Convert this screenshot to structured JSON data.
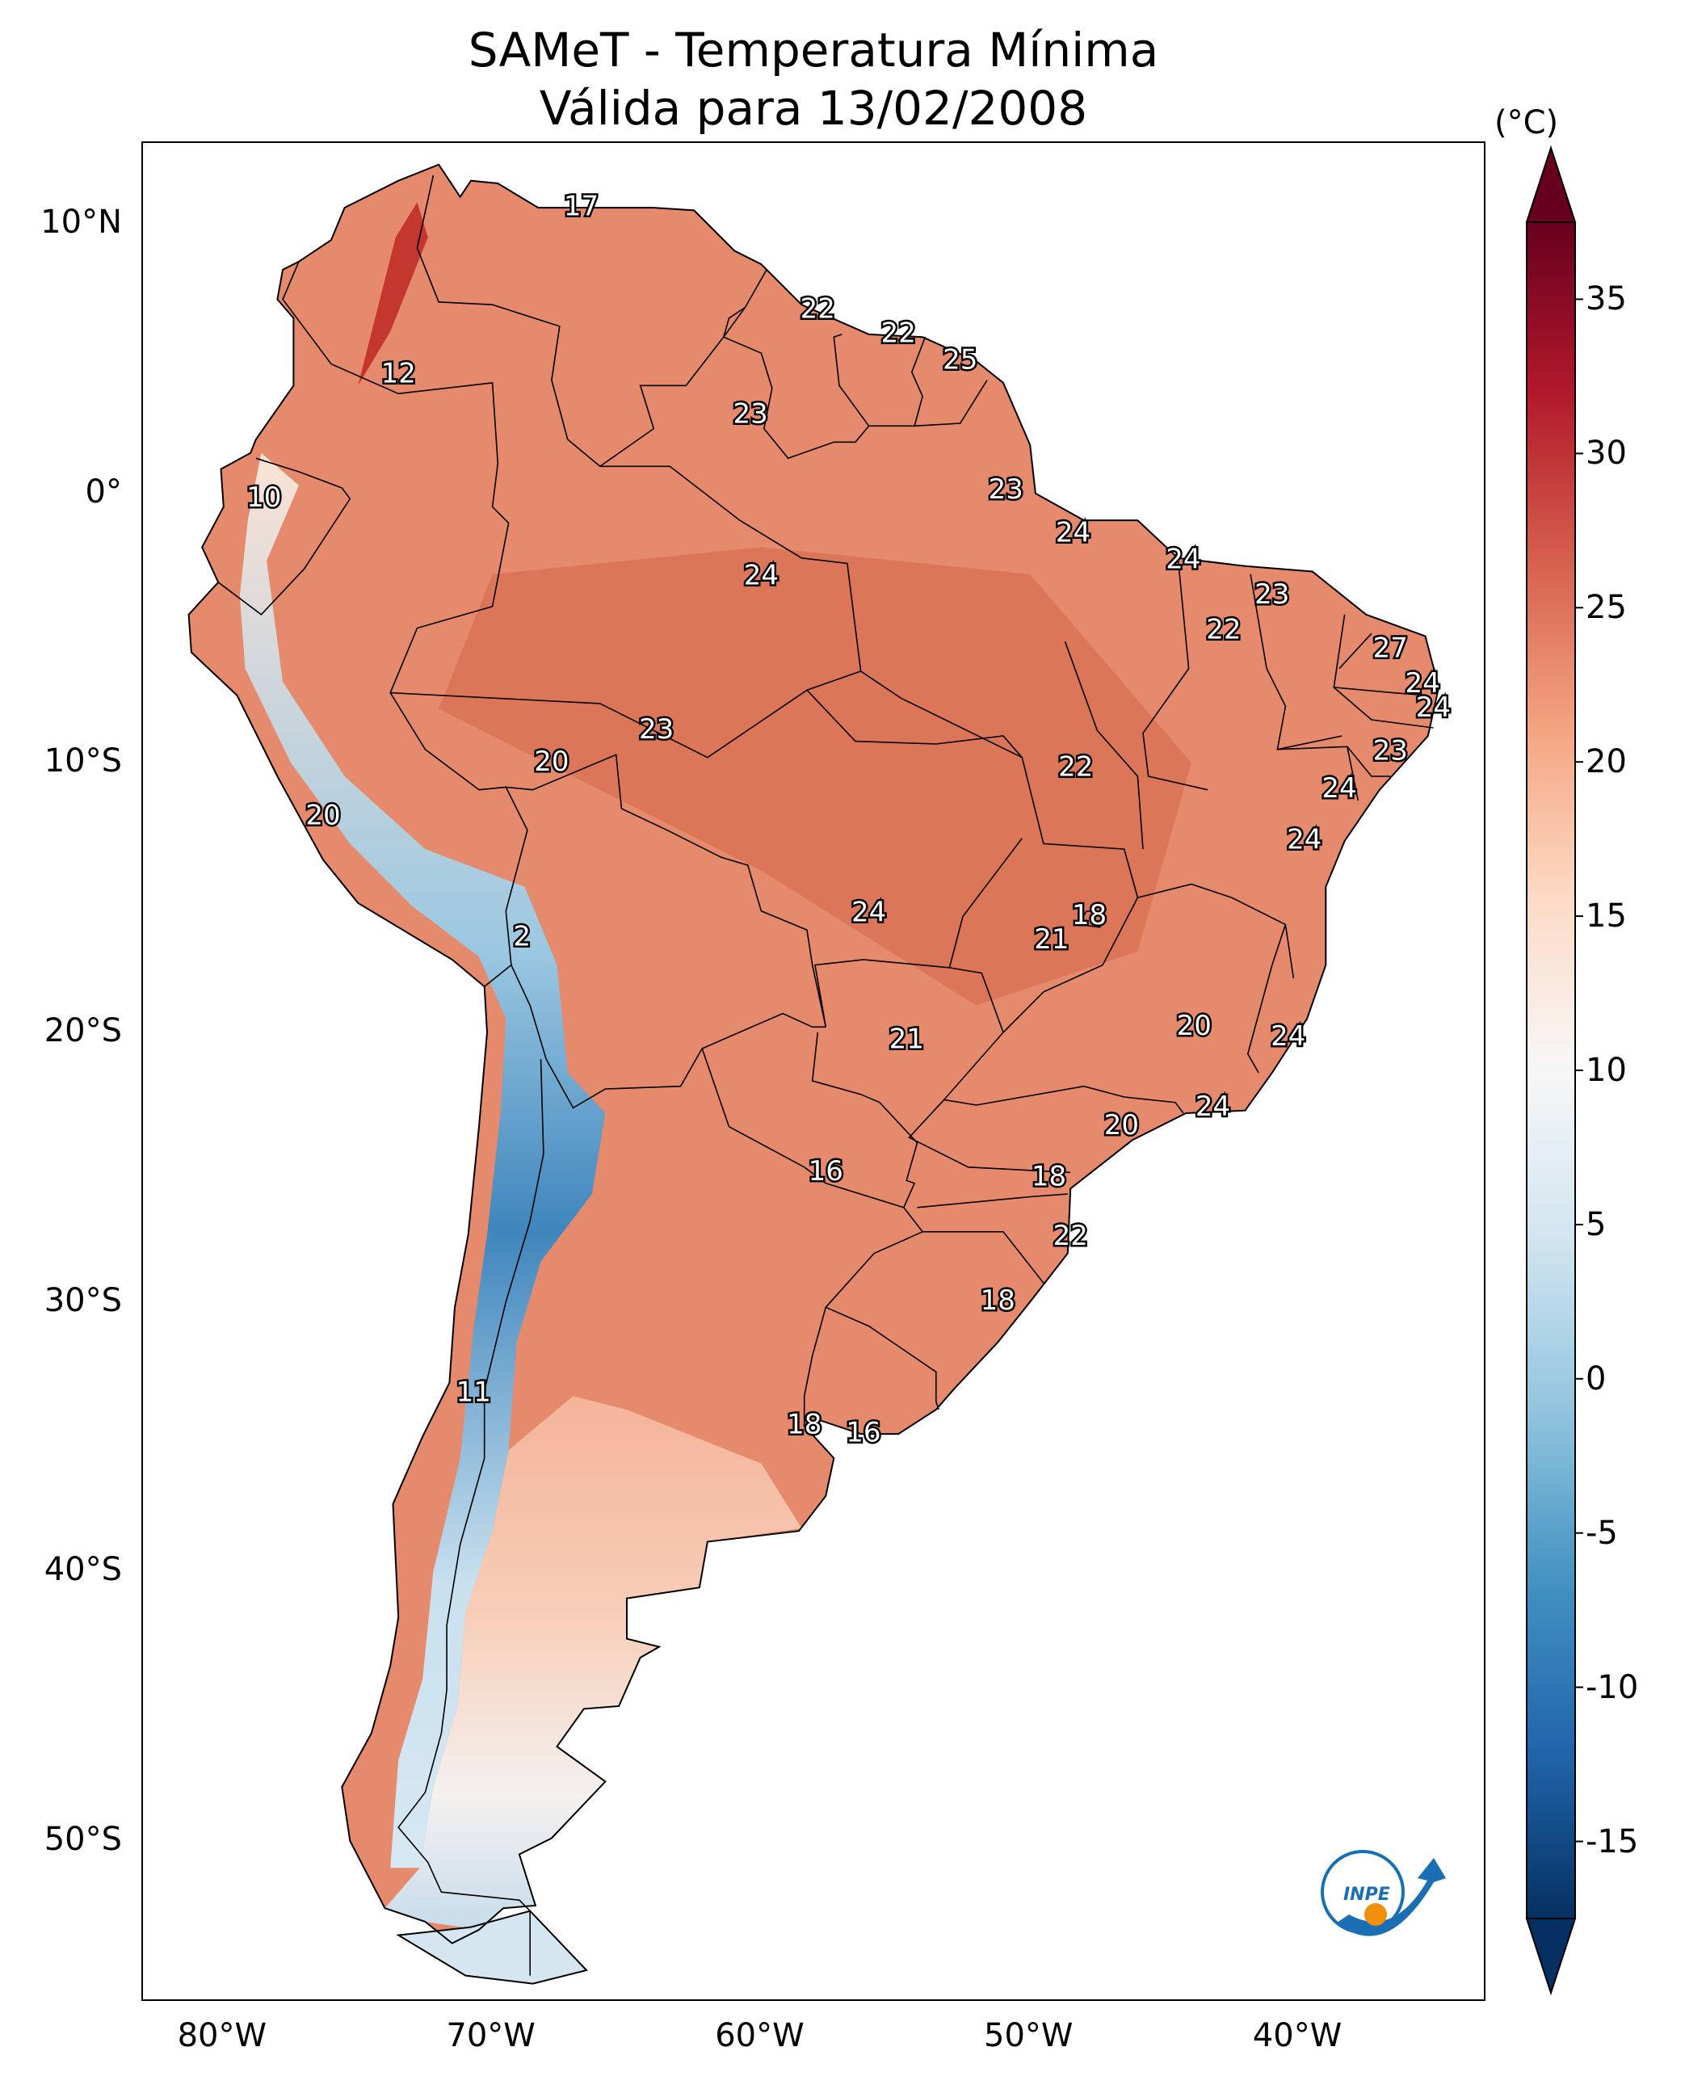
{
  "title": {
    "line1": "SAMeT - Temperatura Mínima",
    "line2": "Válida para 13/02/2008"
  },
  "map": {
    "lon_range": [
      -83,
      -33
    ],
    "lat_range": [
      -56,
      13
    ],
    "lat_ticks": [
      {
        "value": 10,
        "label": "10°N"
      },
      {
        "value": 0,
        "label": "0°"
      },
      {
        "value": -10,
        "label": "10°S"
      },
      {
        "value": -20,
        "label": "20°S"
      },
      {
        "value": -30,
        "label": "30°S"
      },
      {
        "value": -40,
        "label": "40°S"
      },
      {
        "value": -50,
        "label": "50°S"
      }
    ],
    "lon_ticks": [
      {
        "value": -80,
        "label": "80°W"
      },
      {
        "value": -70,
        "label": "70°W"
      },
      {
        "value": -60,
        "label": "60°W"
      },
      {
        "value": -50,
        "label": "50°W"
      },
      {
        "value": -40,
        "label": "40°W"
      }
    ],
    "land_color": "#e58a6d",
    "ocean_color": "#ffffff",
    "border_color": "#000000"
  },
  "point_labels": [
    {
      "lon": -66.7,
      "lat": 10.6,
      "text": "17"
    },
    {
      "lon": -57.9,
      "lat": 6.8,
      "text": "22"
    },
    {
      "lon": -54.9,
      "lat": 5.9,
      "text": "22"
    },
    {
      "lon": -52.6,
      "lat": 4.9,
      "text": "25"
    },
    {
      "lon": -73.5,
      "lat": 4.4,
      "text": "12"
    },
    {
      "lon": -60.4,
      "lat": 2.9,
      "text": "23"
    },
    {
      "lon": -50.9,
      "lat": 0.1,
      "text": "23"
    },
    {
      "lon": -78.5,
      "lat": -0.2,
      "text": "10"
    },
    {
      "lon": -48.4,
      "lat": -1.5,
      "text": "24"
    },
    {
      "lon": -44.3,
      "lat": -2.5,
      "text": "24"
    },
    {
      "lon": -60.0,
      "lat": -3.1,
      "text": "24"
    },
    {
      "lon": -41.0,
      "lat": -3.8,
      "text": "23"
    },
    {
      "lon": -42.8,
      "lat": -5.1,
      "text": "22"
    },
    {
      "lon": -36.6,
      "lat": -5.8,
      "text": "27"
    },
    {
      "lon": -35.4,
      "lat": -7.1,
      "text": "24"
    },
    {
      "lon": -35.0,
      "lat": -8.0,
      "text": "24"
    },
    {
      "lon": -63.9,
      "lat": -8.8,
      "text": "23"
    },
    {
      "lon": -36.6,
      "lat": -9.6,
      "text": "23"
    },
    {
      "lon": -67.8,
      "lat": -10.0,
      "text": "20"
    },
    {
      "lon": -48.3,
      "lat": -10.2,
      "text": "22"
    },
    {
      "lon": -38.5,
      "lat": -11.0,
      "text": "24"
    },
    {
      "lon": -76.3,
      "lat": -12.0,
      "text": "20"
    },
    {
      "lon": -39.8,
      "lat": -12.9,
      "text": "24"
    },
    {
      "lon": -47.8,
      "lat": -15.7,
      "text": "18"
    },
    {
      "lon": -56.0,
      "lat": -15.6,
      "text": "24"
    },
    {
      "lon": -49.2,
      "lat": -16.6,
      "text": "21"
    },
    {
      "lon": -68.9,
      "lat": -16.5,
      "text": "2"
    },
    {
      "lon": -43.9,
      "lat": -19.8,
      "text": "20"
    },
    {
      "lon": -40.4,
      "lat": -20.2,
      "text": "24"
    },
    {
      "lon": -54.6,
      "lat": -20.3,
      "text": "21"
    },
    {
      "lon": -43.2,
      "lat": -22.8,
      "text": "24"
    },
    {
      "lon": -46.6,
      "lat": -23.5,
      "text": "20"
    },
    {
      "lon": -57.6,
      "lat": -25.2,
      "text": "16"
    },
    {
      "lon": -49.3,
      "lat": -25.4,
      "text": "18"
    },
    {
      "lon": -48.5,
      "lat": -27.6,
      "text": "22"
    },
    {
      "lon": -51.2,
      "lat": -30.0,
      "text": "18"
    },
    {
      "lon": -70.7,
      "lat": -33.4,
      "text": "11"
    },
    {
      "lon": -58.4,
      "lat": -34.6,
      "text": "18"
    },
    {
      "lon": -56.2,
      "lat": -34.9,
      "text": "16"
    }
  ],
  "colorbar": {
    "unit": "(°C)",
    "range": [
      -17.5,
      37.5
    ],
    "ticks": [
      {
        "value": 35,
        "label": "35"
      },
      {
        "value": 30,
        "label": "30"
      },
      {
        "value": 25,
        "label": "25"
      },
      {
        "value": 20,
        "label": "20"
      },
      {
        "value": 15,
        "label": "15"
      },
      {
        "value": 10,
        "label": "10"
      },
      {
        "value": 5,
        "label": "5"
      },
      {
        "value": 0,
        "label": "0"
      },
      {
        "value": -5,
        "label": "-5"
      },
      {
        "value": -10,
        "label": "-10"
      },
      {
        "value": -15,
        "label": "-15"
      }
    ],
    "colormap": [
      "#053061",
      "#2166ac",
      "#4393c3",
      "#92c5de",
      "#d1e5f0",
      "#f7f7f7",
      "#fddbc7",
      "#f4a582",
      "#d6604d",
      "#b2182b",
      "#67001f"
    ]
  },
  "logo": {
    "text": "INPE",
    "ring_color": "#1a6fb4",
    "dot_color": "#f0900a"
  }
}
